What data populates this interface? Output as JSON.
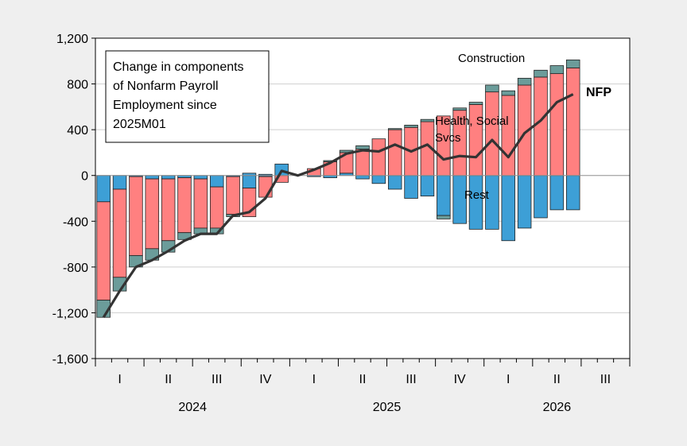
{
  "chart_data": {
    "type": "bar",
    "title": "",
    "xlabel": "",
    "ylabel": "",
    "ylim": [
      -1600,
      1200
    ],
    "y_ticks": [
      "1,200",
      "800",
      "400",
      "0",
      "-400",
      "-800",
      "-1,200",
      "-1,600"
    ],
    "y_tick_values": [
      1200,
      800,
      400,
      0,
      -400,
      -800,
      -1200,
      -1600
    ],
    "grid": true,
    "x_quarter_labels": [
      "I",
      "II",
      "III",
      "IV",
      "I",
      "II",
      "III",
      "IV",
      "I",
      "II",
      "III"
    ],
    "x_year_labels": [
      "2024",
      "2025",
      "2026"
    ],
    "legend_box_text": [
      "Change in components",
      "of Nonfarm Payroll",
      "Employment since",
      "2025M01"
    ],
    "annotations": {
      "construction": "Construction",
      "health_line1": "Health, Social",
      "health_line2": "Svcs",
      "rest": "Rest",
      "nfp": "NFP"
    },
    "colors": {
      "construction": "#6b9c9a",
      "health": "#ff8080",
      "rest": "#3d9fd6",
      "nfp": "#333333",
      "plot_bg": "#ffffff",
      "page_bg": "#efefef"
    },
    "categories": [
      "2024M01",
      "2024M02",
      "2024M03",
      "2024M04",
      "2024M05",
      "2024M06",
      "2024M07",
      "2024M08",
      "2024M09",
      "2024M10",
      "2024M11",
      "2024M12",
      "2025M01",
      "2025M02",
      "2025M03",
      "2025M04",
      "2025M05",
      "2025M06",
      "2025M07",
      "2025M08",
      "2025M09",
      "2025M10",
      "2025M11",
      "2025M12",
      "2026M01",
      "2026M02",
      "2026M03",
      "2026M04",
      "2026M05",
      "2026M06",
      "2026M07",
      "2026M08",
      "2026M09"
    ],
    "series": [
      {
        "name": "Rest",
        "values": [
          -230,
          -120,
          -10,
          -30,
          -30,
          -20,
          -30,
          -100,
          -10,
          -110,
          -10,
          0,
          null,
          -10,
          -20,
          20,
          -30,
          -70,
          -120,
          -200,
          -180,
          -350,
          -420,
          -470,
          -470,
          -570,
          -460,
          -370,
          -300,
          -300,
          null,
          null,
          null
        ]
      },
      {
        "name": "Health, Social Svcs",
        "values": [
          -860,
          -770,
          -690,
          -610,
          -540,
          -480,
          -430,
          -360,
          -330,
          -250,
          -180,
          -60,
          null,
          60,
          120,
          180,
          230,
          320,
          400,
          420,
          470,
          520,
          570,
          620,
          730,
          700,
          790,
          860,
          890,
          940,
          null,
          null,
          null
        ]
      },
      {
        "name": "Construction",
        "values": [
          -150,
          -120,
          -100,
          -100,
          -100,
          -60,
          -50,
          -50,
          -20,
          0,
          0,
          0,
          null,
          0,
          10,
          20,
          30,
          0,
          10,
          20,
          20,
          -30,
          20,
          20,
          60,
          40,
          60,
          60,
          70,
          70,
          null,
          null,
          null
        ]
      },
      {
        "name": "NFP",
        "values": [
          -1240,
          -1010,
          -800,
          -740,
          -660,
          -570,
          -510,
          -510,
          -350,
          -320,
          -200,
          40,
          0,
          50,
          110,
          190,
          220,
          210,
          270,
          210,
          270,
          140,
          170,
          160,
          310,
          160,
          370,
          480,
          640,
          710,
          null,
          null,
          null
        ]
      }
    ],
    "top_extras": [
      0,
      0,
      0,
      0,
      0,
      0,
      0,
      0,
      0,
      20,
      10,
      100,
      null,
      0,
      0,
      0,
      0,
      0,
      0,
      0,
      0,
      0,
      0,
      0,
      0,
      0,
      0,
      0,
      0,
      0,
      null,
      null,
      null
    ]
  }
}
